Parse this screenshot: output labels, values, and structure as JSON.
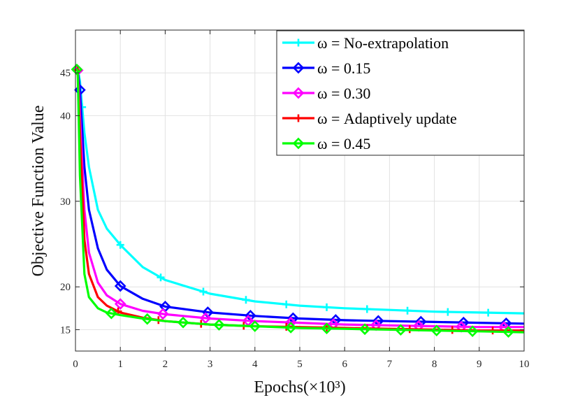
{
  "chart_data": {
    "type": "line",
    "title": "",
    "xlabel": "Epochs(×10³)",
    "ylabel": "Objective Function Value",
    "xlim": [
      0,
      10
    ],
    "ylim": [
      12.5,
      50
    ],
    "x_ticks": [
      0,
      1,
      2,
      3,
      4,
      5,
      6,
      7,
      8,
      9,
      10
    ],
    "y_ticks": [
      15,
      20,
      30,
      40,
      45
    ],
    "grid": true,
    "legend_position": "top-right",
    "series": [
      {
        "name": "ω = No-extrapolation",
        "color": "#00ffff",
        "marker": "plus",
        "marker_x": [
          0.15,
          1.0,
          1.9,
          2.85,
          3.8,
          4.7,
          5.6,
          6.5,
          7.4,
          8.3,
          9.2
        ],
        "x": [
          0.02,
          0.05,
          0.1,
          0.2,
          0.3,
          0.5,
          0.7,
          1.0,
          1.5,
          2.0,
          3.0,
          4.0,
          5.0,
          6.0,
          7.0,
          8.0,
          9.0,
          10.0
        ],
        "y": [
          45.8,
          45.6,
          44.0,
          38.0,
          34.0,
          29.0,
          26.8,
          24.9,
          22.3,
          20.8,
          19.2,
          18.3,
          17.8,
          17.5,
          17.3,
          17.1,
          17.0,
          16.9
        ]
      },
      {
        "name": "ω = 0.15",
        "color": "#0000ff",
        "marker": "diamond",
        "marker_x": [
          0.1,
          1.0,
          2.0,
          2.95,
          3.9,
          4.85,
          5.8,
          6.75,
          7.7,
          8.65,
          9.6
        ],
        "x": [
          0.02,
          0.05,
          0.1,
          0.2,
          0.3,
          0.5,
          0.7,
          1.0,
          1.5,
          2.0,
          3.0,
          4.0,
          5.0,
          6.0,
          7.0,
          8.0,
          9.0,
          10.0
        ],
        "y": [
          45.6,
          45.4,
          43.0,
          34.0,
          29.0,
          24.5,
          22.0,
          20.1,
          18.6,
          17.7,
          17.0,
          16.6,
          16.3,
          16.1,
          16.0,
          15.9,
          15.8,
          15.7
        ]
      },
      {
        "name": "ω = 0.30",
        "color": "#ff00ff",
        "marker": "diamond",
        "marker_x": [
          0.05,
          1.0,
          1.95,
          2.9,
          3.85,
          4.8,
          5.75,
          6.7,
          7.65,
          8.6,
          9.55
        ],
        "x": [
          0.02,
          0.05,
          0.1,
          0.2,
          0.3,
          0.5,
          0.7,
          1.0,
          1.5,
          2.0,
          3.0,
          4.0,
          5.0,
          6.0,
          7.0,
          8.0,
          9.0,
          10.0
        ],
        "y": [
          45.5,
          45.3,
          40.0,
          29.0,
          24.0,
          20.5,
          19.0,
          18.0,
          17.2,
          16.8,
          16.3,
          16.0,
          15.8,
          15.6,
          15.5,
          15.4,
          15.3,
          15.3
        ]
      },
      {
        "name": "ω = Adaptively update",
        "color": "#ff0000",
        "marker": "plus",
        "marker_x": [
          0.05,
          0.95,
          1.85,
          2.8,
          3.75,
          4.7,
          5.6,
          6.5,
          7.45,
          8.4,
          9.3
        ],
        "x": [
          0.02,
          0.05,
          0.1,
          0.2,
          0.3,
          0.5,
          0.7,
          1.0,
          1.5,
          2.0,
          3.0,
          4.0,
          5.0,
          6.0,
          7.0,
          8.0,
          9.0,
          10.0
        ],
        "y": [
          45.5,
          45.3,
          38.0,
          25.5,
          21.5,
          18.8,
          17.8,
          17.0,
          16.4,
          16.0,
          15.6,
          15.4,
          15.3,
          15.2,
          15.1,
          15.0,
          14.9,
          14.9
        ]
      },
      {
        "name": "ω = 0.45",
        "color": "#00ff00",
        "marker": "diamond",
        "marker_x": [
          0.03,
          0.8,
          1.6,
          2.4,
          3.2,
          4.0,
          4.8,
          5.6,
          6.45,
          7.25,
          8.05,
          8.85,
          9.65
        ],
        "x": [
          0.02,
          0.05,
          0.1,
          0.2,
          0.3,
          0.5,
          0.7,
          1.0,
          1.5,
          2.0,
          3.0,
          4.0,
          5.0,
          6.0,
          7.0,
          8.0,
          9.0,
          10.0
        ],
        "y": [
          45.5,
          45.2,
          33.0,
          21.5,
          18.8,
          17.5,
          17.0,
          16.7,
          16.3,
          16.0,
          15.6,
          15.4,
          15.2,
          15.1,
          15.0,
          14.9,
          14.8,
          14.7
        ]
      }
    ]
  }
}
